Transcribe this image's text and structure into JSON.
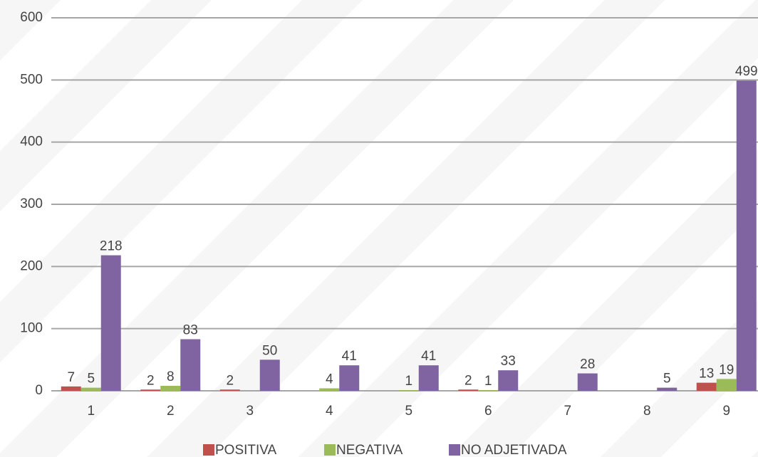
{
  "chart_data": {
    "type": "bar",
    "categories": [
      "1",
      "2",
      "3",
      "4",
      "5",
      "6",
      "7",
      "8",
      "9"
    ],
    "series": [
      {
        "name": "POSITIVA",
        "color": "#c0504d",
        "values": [
          7,
          2,
          2,
          null,
          null,
          2,
          null,
          null,
          13
        ]
      },
      {
        "name": "NEGATIVA",
        "color": "#9bbb59",
        "values": [
          5,
          8,
          null,
          4,
          1,
          1,
          null,
          null,
          19
        ]
      },
      {
        "name": "NO ADJETIVADA",
        "color": "#8064a2",
        "values": [
          218,
          83,
          50,
          41,
          41,
          33,
          28,
          5,
          499
        ]
      }
    ],
    "ylim": [
      0,
      600
    ],
    "yticks": [
      0,
      100,
      200,
      300,
      400,
      500,
      600
    ],
    "grid": true,
    "legend": "bottom"
  }
}
